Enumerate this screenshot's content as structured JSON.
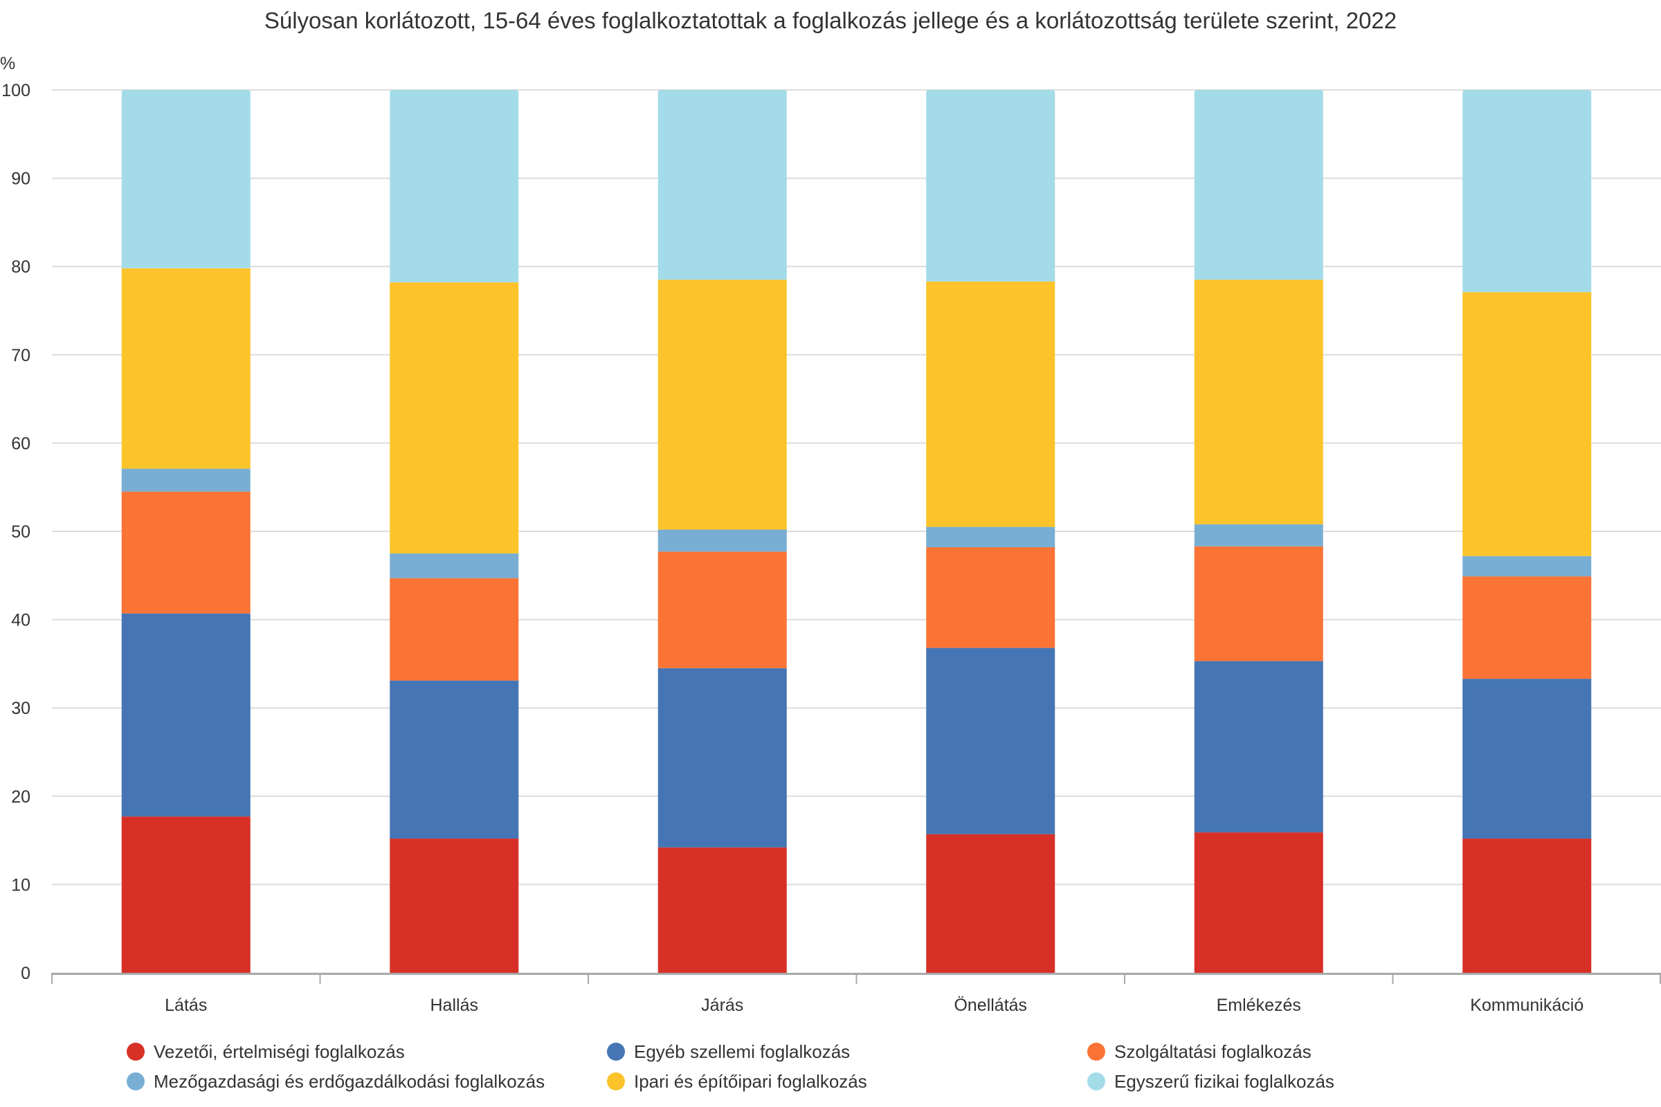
{
  "chart_data": {
    "type": "bar",
    "stacked": true,
    "title": "Súlyosan korlátozott, 15-64 éves foglalkoztatottak a foglalkozás jellege és a korlátozottság területe szerint, 2022",
    "ylabel": "%",
    "xlabel": "",
    "ylim": [
      0,
      100
    ],
    "yticks": [
      0,
      10,
      20,
      30,
      40,
      50,
      60,
      70,
      80,
      90,
      100
    ],
    "grid": true,
    "legend_position": "bottom",
    "categories": [
      "Látás",
      "Hallás",
      "Járás",
      "Önellátás",
      "Emlékezés",
      "Kommunikáció"
    ],
    "series": [
      {
        "name": "Vezetői, értelmiségi foglalkozás",
        "color": "#d73027",
        "values": [
          17.7,
          15.2,
          14.2,
          15.7,
          15.9,
          15.2
        ]
      },
      {
        "name": "Egyéb szellemi foglalkozás",
        "color": "#4575b4",
        "values": [
          23.0,
          17.9,
          20.3,
          21.1,
          19.4,
          18.1
        ]
      },
      {
        "name": "Szolgáltatási foglalkozás",
        "color": "#fb7436",
        "values": [
          13.8,
          11.6,
          13.2,
          11.4,
          13.0,
          11.6
        ]
      },
      {
        "name": "Mezőgazdasági és erdőgazdálkodási foglalkozás",
        "color": "#78aed3",
        "values": [
          2.6,
          2.8,
          2.5,
          2.3,
          2.5,
          2.3
        ]
      },
      {
        "name": "Ipari és építőipari foglalkozás",
        "color": "#fcc42a",
        "values": [
          22.7,
          30.7,
          28.3,
          27.8,
          27.7,
          29.9
        ]
      },
      {
        "name": "Egyszerű fizikai foglalkozás",
        "color": "#a4dbe9",
        "values": [
          20.2,
          21.8,
          21.5,
          21.7,
          21.5,
          22.9
        ]
      }
    ],
    "legend_order": [
      0,
      1,
      2,
      3,
      4,
      5
    ]
  }
}
